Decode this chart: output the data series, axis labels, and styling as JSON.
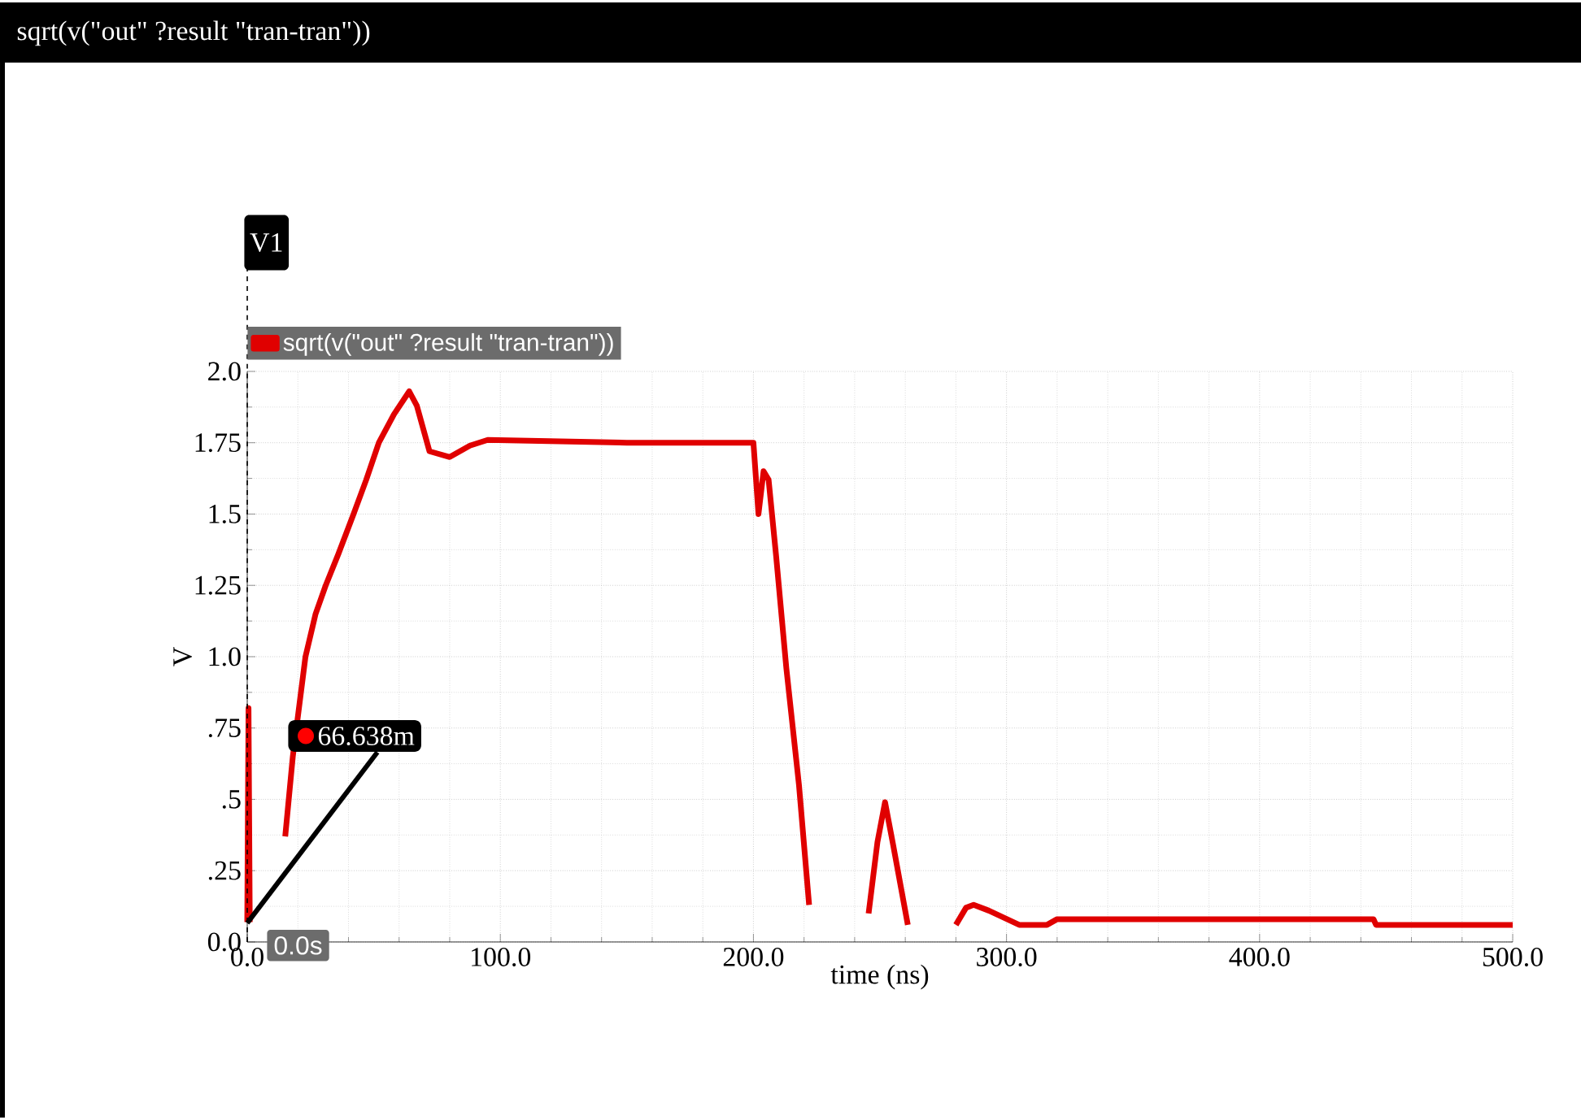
{
  "chart_data": {
    "type": "line",
    "title": "sqrt(v(\"out\" ?result \"tran-tran\"))",
    "xlabel": "time (ns)",
    "ylabel": "V",
    "xlim": [
      0,
      500
    ],
    "ylim": [
      0,
      2
    ],
    "xticks": [
      {
        "value": 0,
        "label": "0.0"
      },
      {
        "value": 100,
        "label": "100.0"
      },
      {
        "value": 200,
        "label": "200.0"
      },
      {
        "value": 300,
        "label": "300.0"
      },
      {
        "value": 400,
        "label": "400.0"
      },
      {
        "value": 500,
        "label": "500.0"
      }
    ],
    "yticks": [
      {
        "value": 0,
        "label": "0.0"
      },
      {
        "value": 0.25,
        "label": ".25"
      },
      {
        "value": 0.5,
        "label": ".5"
      },
      {
        "value": 0.75,
        "label": ".75"
      },
      {
        "value": 1,
        "label": "1.0"
      },
      {
        "value": 1.25,
        "label": "1.25"
      },
      {
        "value": 1.5,
        "label": "1.5"
      },
      {
        "value": 1.75,
        "label": "1.75"
      },
      {
        "value": 2,
        "label": "2.0"
      }
    ],
    "grid": true,
    "legend": "top left",
    "marker": "none",
    "line_style": "solid",
    "ref_lines": [
      {
        "axis": "x",
        "value": 0,
        "label": "V1",
        "line_style": "dashed",
        "color": "#000000"
      }
    ],
    "annotations": [
      {
        "text": "66.638m",
        "x": 0,
        "y": 0.066638
      },
      "0.0s"
    ],
    "series": [
      {
        "name": "sqrt(v(\"out\" ?result \"tran-tran\"))",
        "color": "#e00000",
        "x": [
          0,
          0.5,
          1,
          8,
          15,
          18,
          23,
          27,
          31,
          36,
          42,
          47,
          52,
          58,
          64,
          67,
          72,
          80,
          88,
          95,
          150,
          200,
          202,
          204,
          206,
          209,
          213,
          218,
          222,
          234,
          245.5,
          249,
          252,
          255,
          261,
          270,
          280,
          284,
          287,
          293,
          305,
          316,
          320,
          380,
          445,
          446,
          500
        ],
        "values": [
          0.07,
          0.82,
          0.07,
          null,
          0.37,
          0.65,
          1.0,
          1.15,
          1.25,
          1.36,
          1.5,
          1.62,
          1.75,
          1.85,
          1.93,
          1.88,
          1.72,
          1.7,
          1.74,
          1.76,
          1.75,
          1.75,
          1.5,
          1.65,
          1.62,
          1.35,
          0.96,
          0.55,
          0.13,
          null,
          0.1,
          0.35,
          0.49,
          0.35,
          0.06,
          null,
          0.06,
          0.12,
          0.13,
          0.11,
          0.06,
          0.06,
          0.08,
          0.08,
          0.08,
          0.06,
          0.06
        ]
      }
    ]
  }
}
